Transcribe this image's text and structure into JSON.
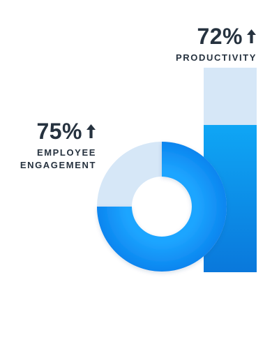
{
  "chart_data": [
    {
      "type": "bar",
      "value_percent": 72,
      "value_text": "72%",
      "label": "PRODUCTIVITY",
      "trend": "up-arrow-icon",
      "colors": {
        "track": "#d6e7f7",
        "fill_top": "#0fa6f5",
        "fill_bottom": "#0a78db"
      }
    },
    {
      "type": "pie",
      "style": "donut",
      "value_percent": 75,
      "value_text": "75%",
      "label_lines": [
        "EMPLOYEE",
        "ENGAGEMENT"
      ],
      "trend": "up-arrow-icon",
      "colors": {
        "track": "#d6e7f7",
        "fill_inner": "#1ea5ff",
        "fill_outer": "#0b85ef"
      }
    }
  ],
  "text_color": "#26323f"
}
